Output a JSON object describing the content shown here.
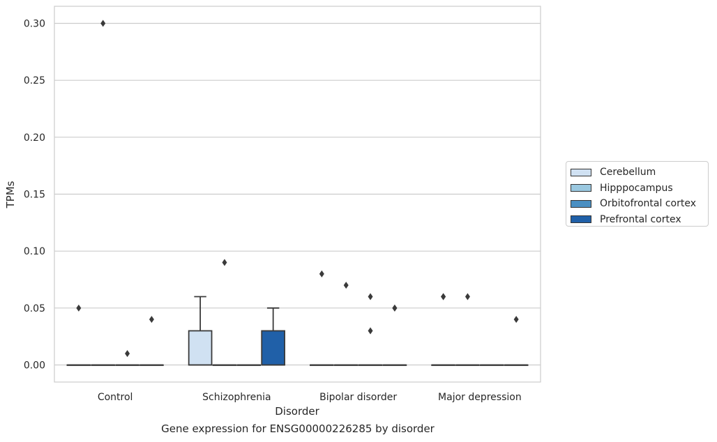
{
  "chart_data": {
    "type": "box",
    "title": "",
    "caption": "Gene expression for ENSG00000226285 by disorder",
    "xlabel": "Disorder",
    "ylabel": "TPMs",
    "ylim": [
      -0.015,
      0.315
    ],
    "yticks": [
      "0.00",
      "0.05",
      "0.10",
      "0.15",
      "0.20",
      "0.25",
      "0.30"
    ],
    "grid": "horizontal",
    "legend_position": "right",
    "categories": [
      "Control",
      "Schizophrenia",
      "Bipolar disorder",
      "Major depression"
    ],
    "series": [
      {
        "name": "Cerebellum",
        "color": "#d0e1f2",
        "boxes": [
          {
            "q1": 0,
            "median": 0,
            "q3": 0,
            "whisker_low": 0,
            "whisker_high": 0,
            "outliers": [
              0.05
            ]
          },
          {
            "q1": 0,
            "median": 0,
            "q3": 0.03,
            "whisker_low": 0,
            "whisker_high": 0.06,
            "outliers": []
          },
          {
            "q1": 0,
            "median": 0,
            "q3": 0,
            "whisker_low": 0,
            "whisker_high": 0,
            "outliers": [
              0.08
            ]
          },
          {
            "q1": 0,
            "median": 0,
            "q3": 0,
            "whisker_low": 0,
            "whisker_high": 0,
            "outliers": [
              0.06,
              0.06
            ]
          }
        ]
      },
      {
        "name": "Hipppocampus",
        "color": "#9ac8e0",
        "boxes": [
          {
            "q1": 0,
            "median": 0,
            "q3": 0,
            "whisker_low": 0,
            "whisker_high": 0,
            "outliers": [
              0.3
            ]
          },
          {
            "q1": 0,
            "median": 0,
            "q3": 0,
            "whisker_low": 0,
            "whisker_high": 0,
            "outliers": [
              0.09
            ]
          },
          {
            "q1": 0,
            "median": 0,
            "q3": 0,
            "whisker_low": 0,
            "whisker_high": 0,
            "outliers": [
              0.07
            ]
          },
          {
            "q1": 0,
            "median": 0,
            "q3": 0,
            "whisker_low": 0,
            "whisker_high": 0,
            "outliers": [
              0.06
            ]
          }
        ]
      },
      {
        "name": "Orbitofrontal cortex",
        "color": "#4a8fc2",
        "boxes": [
          {
            "q1": 0,
            "median": 0,
            "q3": 0,
            "whisker_low": 0,
            "whisker_high": 0,
            "outliers": [
              0.01
            ]
          },
          {
            "q1": 0,
            "median": 0,
            "q3": 0,
            "whisker_low": 0,
            "whisker_high": 0,
            "outliers": []
          },
          {
            "q1": 0,
            "median": 0,
            "q3": 0,
            "whisker_low": 0,
            "whisker_high": 0,
            "outliers": [
              0.06,
              0.03
            ]
          },
          {
            "q1": 0,
            "median": 0,
            "q3": 0,
            "whisker_low": 0,
            "whisker_high": 0,
            "outliers": []
          }
        ]
      },
      {
        "name": "Prefrontal cortex",
        "color": "#2060a8",
        "boxes": [
          {
            "q1": 0,
            "median": 0,
            "q3": 0,
            "whisker_low": 0,
            "whisker_high": 0,
            "outliers": [
              0.04
            ]
          },
          {
            "q1": 0,
            "median": 0,
            "q3": 0.03,
            "whisker_low": 0,
            "whisker_high": 0.05,
            "outliers": []
          },
          {
            "q1": 0,
            "median": 0,
            "q3": 0,
            "whisker_low": 0,
            "whisker_high": 0,
            "outliers": [
              0.05,
              0.05
            ]
          },
          {
            "q1": 0,
            "median": 0,
            "q3": 0,
            "whisker_low": 0,
            "whisker_high": 0,
            "outliers": [
              0.04
            ]
          }
        ]
      }
    ]
  }
}
